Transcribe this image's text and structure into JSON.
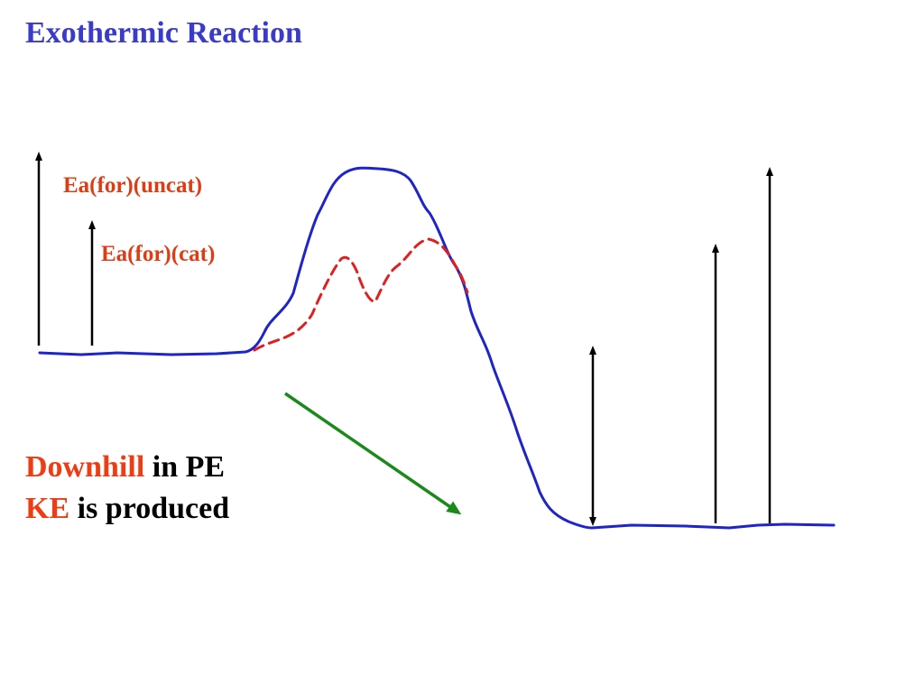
{
  "title": "Exothermic Reaction",
  "labels": {
    "uncatalyzed": "Ea(for)(uncat)",
    "catalyzed": "Ea(for)(cat)"
  },
  "caption": {
    "line1_highlight": "Downhill",
    "line1_rest": " in PE",
    "line2_highlight": "KE",
    "line2_rest": " is produced"
  },
  "colors": {
    "title": "#3a3acb",
    "uncatalyzed_curve": "#1f24c8",
    "catalyzed_curve": "#e02020",
    "highlight_text": "#f03c14",
    "downhill_arrow": "#1a8a1a",
    "energy_arrows": "#000000"
  },
  "curves": {
    "uncatalyzed": "solid blue line",
    "catalyzed": "dashed red line"
  }
}
